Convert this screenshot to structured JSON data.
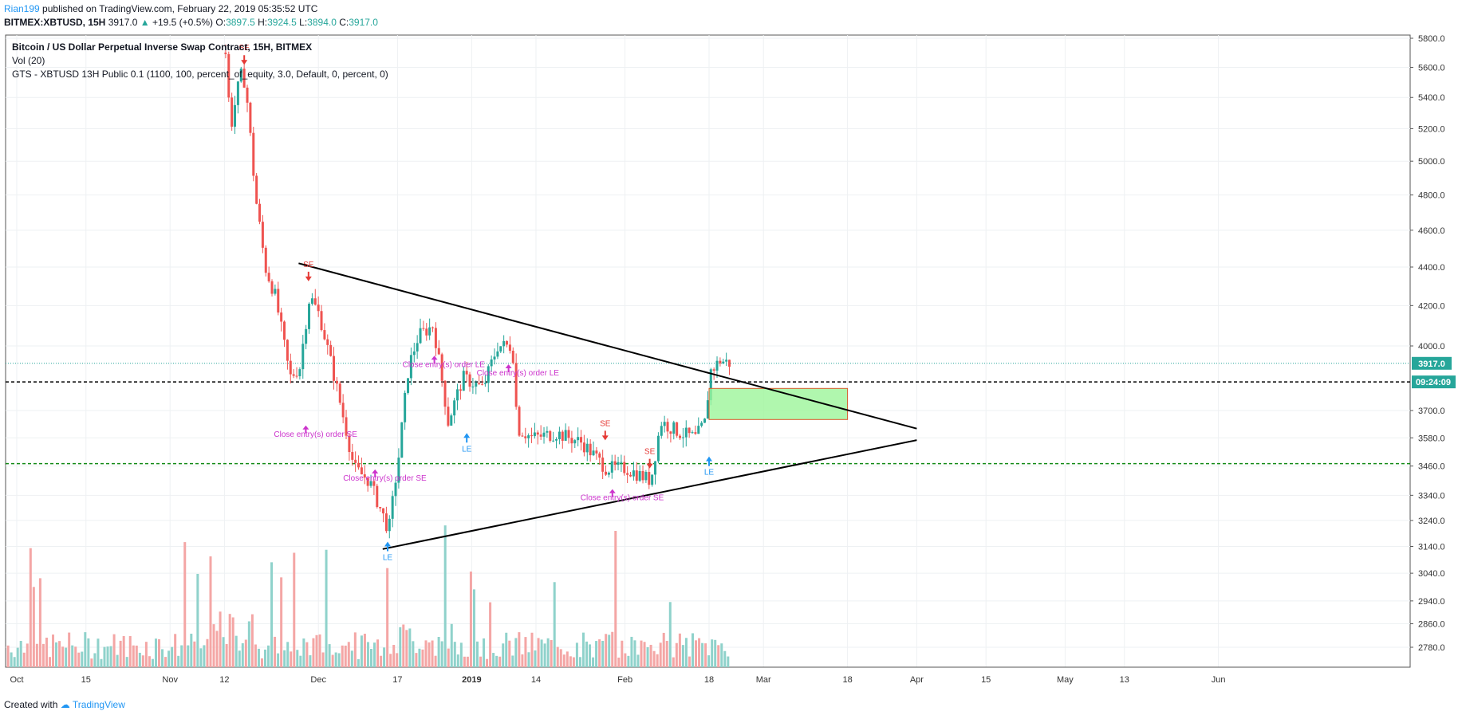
{
  "header": {
    "publisher": "Rian199",
    "published_text": "published on TradingView.com, February 22, 2019 05:35:52 UTC",
    "symbol": "BITMEX:XBTUSD, 15H",
    "last": "3917.0",
    "change": "+19.5 (+0.5%)",
    "open_label": "O:",
    "open": "3897.5",
    "high_label": "H:",
    "high": "3924.5",
    "low_label": "L:",
    "low": "3894.0",
    "close_label": "C:",
    "close": "3917.0"
  },
  "legend": {
    "title": "Bitcoin / US Dollar Perpetual Inverse Swap Contract, 15H, BITMEX",
    "volume": "Vol (20)",
    "strategy": "GTS - XBTUSD 13H Public 0.1 (1100, 100, percent_of_equity, 3.0, Default, 0, percent, 0)"
  },
  "footer": {
    "created_with": "Created with",
    "brand": "TradingView"
  },
  "price_badge": {
    "price": "3917.0",
    "countdown": "09:24:09"
  },
  "colors": {
    "up": "#26a69a",
    "down": "#ef5350",
    "vol_up": "#8fd2cb",
    "vol_down": "#f4a6a5",
    "signal_le": "#2196f3",
    "signal_se": "#e53935",
    "signal_close": "#cc33cc",
    "line_black": "#000000",
    "line_green": "#138a16",
    "box_fill": "#9cf59a",
    "box_edge": "#d9582b"
  },
  "chart_data": {
    "type": "candlestick",
    "y_ticks": [
      "5800.0",
      "5600.0",
      "5400.0",
      "5200.0",
      "5000.0",
      "4800.0",
      "4600.0",
      "4400.0",
      "4200.0",
      "4000.0",
      "3700.0",
      "3580.0",
      "3460.0",
      "3340.0",
      "3240.0",
      "3140.0",
      "3040.0",
      "2940.0",
      "2860.0",
      "2780.0"
    ],
    "x_ticks": [
      "Oct",
      "15",
      "Nov",
      "12",
      "Dec",
      "17",
      "2019",
      "14",
      "Feb",
      "18",
      "Mar",
      "18",
      "Apr",
      "15",
      "May",
      "13",
      "Jun"
    ],
    "y_scale": "log",
    "ohlc_anchors": [
      {
        "t": "Nov 12",
        "price": 5700
      },
      {
        "t": "Nov 13",
        "price": 5200
      },
      {
        "t": "Nov 15",
        "price": 5550
      },
      {
        "t": "Nov 16",
        "price": 5500
      },
      {
        "t": "Nov 18",
        "price": 4800
      },
      {
        "t": "Nov 20",
        "price": 4400
      },
      {
        "t": "Nov 22",
        "price": 4250
      },
      {
        "t": "Nov 25",
        "price": 3850
      },
      {
        "t": "Nov 27",
        "price": 3900
      },
      {
        "t": "Nov 29",
        "price": 4250
      },
      {
        "t": "Dec 1",
        "price": 4150
      },
      {
        "t": "Dec 5",
        "price": 3750
      },
      {
        "t": "Dec 8",
        "price": 3450
      },
      {
        "t": "Dec 11",
        "price": 3400
      },
      {
        "t": "Dec 15",
        "price": 3200
      },
      {
        "t": "Dec 17",
        "price": 3500
      },
      {
        "t": "Dec 19",
        "price": 3900
      },
      {
        "t": "Dec 21",
        "price": 4050
      },
      {
        "t": "Dec 24",
        "price": 4100
      },
      {
        "t": "Dec 27",
        "price": 3650
      },
      {
        "t": "Dec 30",
        "price": 3850
      },
      {
        "t": "Jan 3",
        "price": 3800
      },
      {
        "t": "Jan 6",
        "price": 4000
      },
      {
        "t": "Jan 9",
        "price": 4000
      },
      {
        "t": "Jan 10",
        "price": 3620
      },
      {
        "t": "Jan 13",
        "price": 3580
      },
      {
        "t": "Jan 18",
        "price": 3600
      },
      {
        "t": "Jan 23",
        "price": 3560
      },
      {
        "t": "Jan 28",
        "price": 3450
      },
      {
        "t": "Feb 1",
        "price": 3450
      },
      {
        "t": "Feb 6",
        "price": 3400
      },
      {
        "t": "Feb 8",
        "price": 3650
      },
      {
        "t": "Feb 12",
        "price": 3600
      },
      {
        "t": "Feb 15",
        "price": 3580
      },
      {
        "t": "Feb 17",
        "price": 3650
      },
      {
        "t": "Feb 18",
        "price": 3880
      },
      {
        "t": "Feb 20",
        "price": 3930
      },
      {
        "t": "Feb 22",
        "price": 3917
      }
    ],
    "volume_scale": {
      "t_start": "Sep 29",
      "t_end": "Feb 22"
    },
    "signals": [
      {
        "type": "SE",
        "t": "Nov 16",
        "price": 5650
      },
      {
        "type": "SE",
        "t": "Nov 29",
        "price": 4350
      },
      {
        "type": "LE",
        "t": "Dec 15",
        "price": 3140
      },
      {
        "type": "LE",
        "t": "Dec 31",
        "price": 3580
      },
      {
        "type": "SE",
        "t": "Jan 28",
        "price": 3590
      },
      {
        "type": "SE",
        "t": "Feb 6",
        "price": 3470
      },
      {
        "type": "LE",
        "t": "Feb 18",
        "price": 3480
      }
    ],
    "annotations": [
      {
        "text": "Close entry(s) order SE",
        "t": "Nov 22",
        "price": 3585
      },
      {
        "text": "Close entry(s) order SE",
        "t": "Dec 6",
        "price": 3400
      },
      {
        "text": "Close entry(s) order LE",
        "t": "Dec 18",
        "price": 3900
      },
      {
        "text": "Close entry(s) order LE",
        "t": "Jan 2",
        "price": 3860
      },
      {
        "text": "Close entry(s) order SE",
        "t": "Jan 23",
        "price": 3320
      }
    ],
    "trendlines": [
      {
        "from": {
          "t": "Nov 27",
          "price": 4420
        },
        "to": {
          "t": "Apr 1",
          "price": 3620
        }
      },
      {
        "from": {
          "t": "Dec 14",
          "price": 3130
        },
        "to": {
          "t": "Apr 1",
          "price": 3570
        }
      }
    ],
    "horizontal_lines": [
      {
        "price": 3917,
        "style": "dotted",
        "color": "up"
      },
      {
        "price": 3830,
        "style": "dashed",
        "color": "black"
      },
      {
        "price": 3470,
        "style": "dashed",
        "color": "green"
      }
    ],
    "box": {
      "t0": "Feb 18",
      "t1": "Mar 18",
      "p0": 3660,
      "p1": 3800
    }
  }
}
